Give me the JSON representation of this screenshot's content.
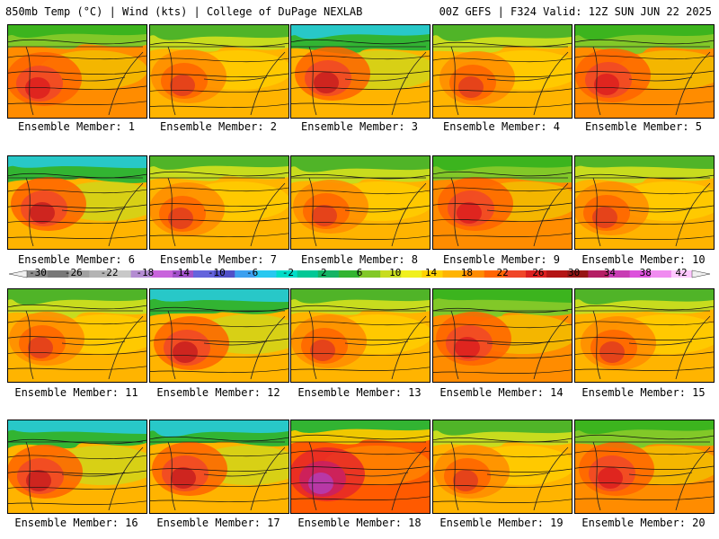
{
  "header": {
    "left": "850mb Temp (°C) | Wind (kts) | College of DuPage NEXLAB",
    "right": "00Z GEFS | F324 Valid: 12Z SUN JUN 22 2025"
  },
  "colorbar": {
    "labels": [
      "-30",
      "-26",
      "-22",
      "-18",
      "-14",
      "-10",
      "-6",
      "-2",
      "2",
      "6",
      "10",
      "14",
      "18",
      "22",
      "26",
      "30",
      "34",
      "38",
      "42"
    ],
    "colors": [
      "#8c8c8c",
      "#787878",
      "#a0a0a0",
      "#b4b4b4",
      "#c8c8c8",
      "#b48cd2",
      "#c864dc",
      "#a050c8",
      "#6464dc",
      "#5050c8",
      "#3ca0f0",
      "#28c8f0",
      "#00dcc8",
      "#00c896",
      "#14b464",
      "#32b432",
      "#82c828",
      "#c8dc1e",
      "#f0f01e",
      "#ffd200",
      "#ffb400",
      "#ff8c00",
      "#ff6400",
      "#f04628",
      "#dc1e1e",
      "#b41414",
      "#961414",
      "#b41e64",
      "#c83cb4",
      "#dc50dc",
      "#f08cf0",
      "#ffc8ff"
    ]
  },
  "panels": [
    {
      "caption": "Ensemble Member: 1",
      "style": 1
    },
    {
      "caption": "Ensemble Member: 2",
      "style": 2
    },
    {
      "caption": "Ensemble Member: 3",
      "style": 3
    },
    {
      "caption": "Ensemble Member: 4",
      "style": 2
    },
    {
      "caption": "Ensemble Member: 5",
      "style": 1
    },
    {
      "caption": "Ensemble Member: 6",
      "style": 3
    },
    {
      "caption": "Ensemble Member: 7",
      "style": 2
    },
    {
      "caption": "Ensemble Member: 8",
      "style": 2
    },
    {
      "caption": "Ensemble Member: 9",
      "style": 1
    },
    {
      "caption": "Ensemble Member: 10",
      "style": 2
    },
    {
      "caption": "Ensemble Member: 11",
      "style": 2
    },
    {
      "caption": "Ensemble Member: 12",
      "style": 3
    },
    {
      "caption": "Ensemble Member: 13",
      "style": 2
    },
    {
      "caption": "Ensemble Member: 14",
      "style": 1
    },
    {
      "caption": "Ensemble Member: 15",
      "style": 2
    },
    {
      "caption": "Ensemble Member: 16",
      "style": 3
    },
    {
      "caption": "Ensemble Member: 17",
      "style": 3
    },
    {
      "caption": "Ensemble Member: 18",
      "style": 4
    },
    {
      "caption": "Ensemble Member: 19",
      "style": 2
    },
    {
      "caption": "Ensemble Member: 20",
      "style": 1
    }
  ]
}
